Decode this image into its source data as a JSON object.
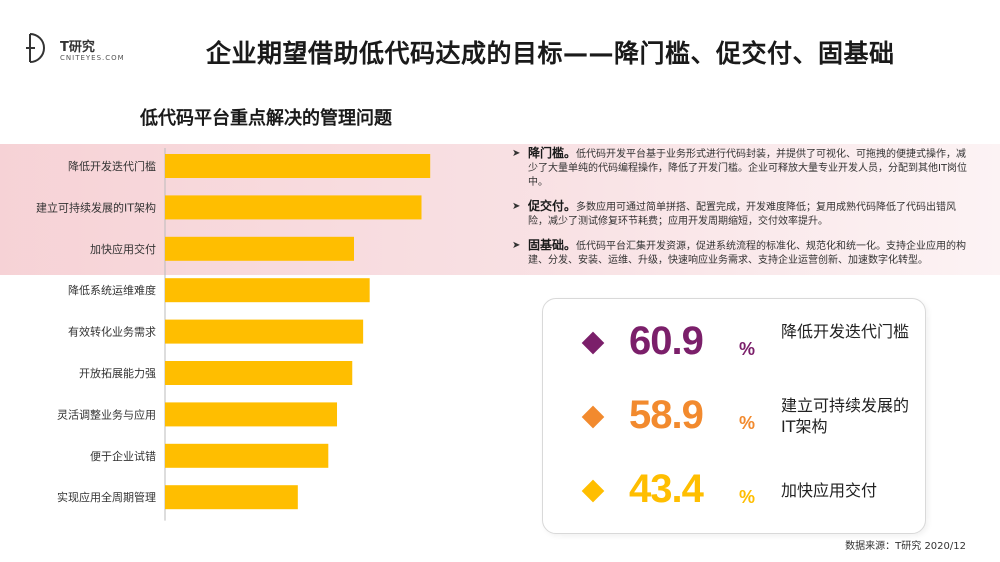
{
  "header": {
    "logo_name": "T研究",
    "logo_sub": "CNITEYES.COM",
    "title": "企业期望借助低代码达成的目标——降门槛、促交付、固基础"
  },
  "chart_data": {
    "type": "bar",
    "orientation": "horizontal",
    "title": "低代码平台重点解决的管理问题",
    "categories": [
      "降低开发迭代门槛",
      "建立可持续发展的IT架构",
      "加快应用交付",
      "降低系统运维难度",
      "有效转化业务需求",
      "开放拓展能力强",
      "灵活调整业务与应用",
      "便于企业试错",
      "实现应用全周期管理"
    ],
    "values": [
      60.9,
      58.9,
      43.4,
      47.0,
      45.5,
      43.0,
      39.5,
      37.5,
      30.5
    ],
    "xlim": [
      0,
      62
    ],
    "bar_color": "#FFBE00",
    "highlighted_count": 3,
    "grid": false,
    "data_labels": false
  },
  "bullets": [
    {
      "head": "降门槛。",
      "text": "低代码开发平台基于业务形式进行代码封装，并提供了可视化、可拖拽的便捷式操作，减少了大量单纯的代码编程操作，降低了开发门槛。企业可释放大量专业开发人员，分配到其他IT岗位中。"
    },
    {
      "head": "促交付。",
      "text": "多数应用可通过简单拼搭、配置完成，开发难度降低；复用成熟代码降低了代码出错风险，减少了测试修复环节耗费；应用开发周期缩短，交付效率提升。"
    },
    {
      "head": "固基础。",
      "text": "低代码平台汇集开发资源，促进系统流程的标准化、规范化和统一化。支持企业应用的构建、分发、安装、运维、升级，快速响应业务需求、支持企业运营创新、加速数字化转型。"
    }
  ],
  "stats": [
    {
      "value": "60.9",
      "unit": "%",
      "label": "降低开发迭代门槛",
      "color": "#7B1F6A"
    },
    {
      "value": "58.9",
      "unit": "%",
      "label": "建立可持续发展的IT架构",
      "color": "#F28A2E"
    },
    {
      "value": "43.4",
      "unit": "%",
      "label": "加快应用交付",
      "color": "#FFBE00"
    }
  ],
  "source": "数据来源：T研究 2020/12"
}
